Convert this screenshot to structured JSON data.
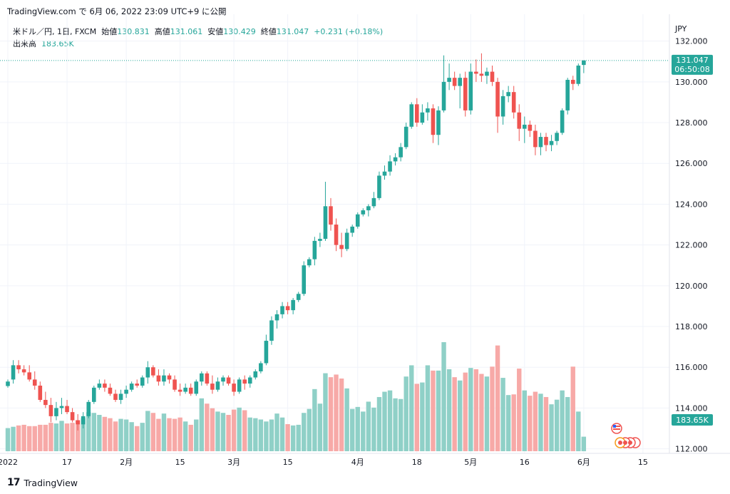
{
  "caption": "TradingView.com で 6月 06, 2022 23:09 UTC+9 に公開",
  "symbol": {
    "name": "米ドル／円, 1日, FXCM",
    "open_label": "始値",
    "open": "130.831",
    "high_label": "高値",
    "high": "131.061",
    "low_label": "安値",
    "low": "130.429",
    "close_label": "終値",
    "close": "131.047",
    "change": "+0.231 (+0.18%)"
  },
  "volume_info": {
    "label": "出来高",
    "value": "183.65K"
  },
  "currency": "JPY",
  "price_tag": {
    "price": "131.047",
    "countdown": "06:50:08"
  },
  "volume_tag": "183.65K",
  "brand": "TradingView",
  "colors": {
    "up": "#26a69a",
    "down": "#ef5350",
    "up_vol": "#8fd0c7",
    "down_vol": "#f7a9a7",
    "grid": "#f0f3fa"
  },
  "chart_data": {
    "type": "candlestick",
    "title": "米ドル／円, 1日, FXCM",
    "ylabel": "JPY",
    "ylim": [
      111.2,
      132.6
    ],
    "yticks": [
      "112.000",
      "114.000",
      "116.000",
      "118.000",
      "120.000",
      "122.000",
      "124.000",
      "126.000",
      "128.000",
      "130.000",
      "132.000"
    ],
    "x_ticks": [
      {
        "label": "2022",
        "index": 0
      },
      {
        "label": "17",
        "index": 11
      },
      {
        "label": "2月",
        "index": 22
      },
      {
        "label": "15",
        "index": 32
      },
      {
        "label": "3月",
        "index": 42
      },
      {
        "label": "15",
        "index": 52
      },
      {
        "label": "4月",
        "index": 65
      },
      {
        "label": "18",
        "index": 76
      },
      {
        "label": "5月",
        "index": 86
      },
      {
        "label": "16",
        "index": 96
      },
      {
        "label": "6月",
        "index": 107
      },
      {
        "label": "15",
        "index": 118
      }
    ],
    "candles": [
      {
        "o": 115.08,
        "h": 115.4,
        "l": 115.0,
        "c": 115.3,
        "v": 35
      },
      {
        "o": 115.4,
        "h": 116.35,
        "l": 115.2,
        "c": 116.1,
        "v": 37
      },
      {
        "o": 116.1,
        "h": 116.35,
        "l": 115.7,
        "c": 115.9,
        "v": 39
      },
      {
        "o": 115.9,
        "h": 116.1,
        "l": 115.6,
        "c": 115.75,
        "v": 40
      },
      {
        "o": 115.75,
        "h": 116.1,
        "l": 115.3,
        "c": 115.4,
        "v": 38
      },
      {
        "o": 115.4,
        "h": 115.8,
        "l": 114.9,
        "c": 115.1,
        "v": 38
      },
      {
        "o": 115.1,
        "h": 115.3,
        "l": 114.3,
        "c": 114.4,
        "v": 40
      },
      {
        "o": 114.4,
        "h": 114.8,
        "l": 114.0,
        "c": 114.15,
        "v": 40
      },
      {
        "o": 114.15,
        "h": 114.5,
        "l": 113.3,
        "c": 113.6,
        "v": 43
      },
      {
        "o": 113.6,
        "h": 114.3,
        "l": 113.4,
        "c": 114.0,
        "v": 42
      },
      {
        "o": 114.0,
        "h": 114.5,
        "l": 113.7,
        "c": 114.1,
        "v": 46
      },
      {
        "o": 114.1,
        "h": 114.4,
        "l": 113.7,
        "c": 113.8,
        "v": 42
      },
      {
        "o": 113.8,
        "h": 114.0,
        "l": 113.3,
        "c": 113.4,
        "v": 43
      },
      {
        "o": 113.4,
        "h": 113.7,
        "l": 112.9,
        "c": 113.2,
        "v": 47
      },
      {
        "o": 113.2,
        "h": 113.8,
        "l": 113.0,
        "c": 113.6,
        "v": 50
      },
      {
        "o": 113.6,
        "h": 114.4,
        "l": 113.5,
        "c": 114.3,
        "v": 59
      },
      {
        "o": 114.3,
        "h": 115.1,
        "l": 114.2,
        "c": 115.0,
        "v": 58
      },
      {
        "o": 115.0,
        "h": 115.4,
        "l": 114.9,
        "c": 115.2,
        "v": 55
      },
      {
        "o": 115.2,
        "h": 115.4,
        "l": 114.8,
        "c": 115.0,
        "v": 52
      },
      {
        "o": 115.0,
        "h": 115.2,
        "l": 114.6,
        "c": 114.7,
        "v": 50
      },
      {
        "o": 114.7,
        "h": 114.9,
        "l": 114.3,
        "c": 114.4,
        "v": 45
      },
      {
        "o": 114.4,
        "h": 114.9,
        "l": 114.2,
        "c": 114.7,
        "v": 49
      },
      {
        "o": 114.7,
        "h": 115.1,
        "l": 114.5,
        "c": 114.9,
        "v": 48
      },
      {
        "o": 114.9,
        "h": 115.3,
        "l": 114.8,
        "c": 115.2,
        "v": 44
      },
      {
        "o": 115.2,
        "h": 115.4,
        "l": 115.0,
        "c": 115.1,
        "v": 38
      },
      {
        "o": 115.1,
        "h": 115.6,
        "l": 115.0,
        "c": 115.5,
        "v": 43
      },
      {
        "o": 115.5,
        "h": 116.3,
        "l": 115.2,
        "c": 116.0,
        "v": 61
      },
      {
        "o": 116.0,
        "h": 116.1,
        "l": 115.5,
        "c": 115.6,
        "v": 58
      },
      {
        "o": 115.6,
        "h": 115.9,
        "l": 115.1,
        "c": 115.3,
        "v": 49
      },
      {
        "o": 115.3,
        "h": 115.9,
        "l": 115.1,
        "c": 115.6,
        "v": 57
      },
      {
        "o": 115.6,
        "h": 115.7,
        "l": 115.2,
        "c": 115.4,
        "v": 50
      },
      {
        "o": 115.4,
        "h": 115.6,
        "l": 114.8,
        "c": 114.9,
        "v": 49
      },
      {
        "o": 114.9,
        "h": 115.2,
        "l": 114.6,
        "c": 114.8,
        "v": 51
      },
      {
        "o": 114.8,
        "h": 115.2,
        "l": 114.7,
        "c": 115.0,
        "v": 45
      },
      {
        "o": 115.0,
        "h": 115.2,
        "l": 114.6,
        "c": 114.7,
        "v": 40
      },
      {
        "o": 114.7,
        "h": 115.4,
        "l": 114.6,
        "c": 115.3,
        "v": 48
      },
      {
        "o": 115.3,
        "h": 115.8,
        "l": 115.1,
        "c": 115.7,
        "v": 80
      },
      {
        "o": 115.7,
        "h": 115.8,
        "l": 115.1,
        "c": 115.2,
        "v": 72
      },
      {
        "o": 115.2,
        "h": 115.6,
        "l": 114.7,
        "c": 114.9,
        "v": 65
      },
      {
        "o": 114.9,
        "h": 115.5,
        "l": 114.8,
        "c": 115.3,
        "v": 60
      },
      {
        "o": 115.3,
        "h": 115.6,
        "l": 115.1,
        "c": 115.5,
        "v": 58
      },
      {
        "o": 115.5,
        "h": 115.6,
        "l": 115.1,
        "c": 115.2,
        "v": 55
      },
      {
        "o": 115.2,
        "h": 115.4,
        "l": 114.6,
        "c": 114.8,
        "v": 63
      },
      {
        "o": 114.8,
        "h": 115.5,
        "l": 114.7,
        "c": 115.4,
        "v": 66
      },
      {
        "o": 115.4,
        "h": 115.6,
        "l": 114.9,
        "c": 115.2,
        "v": 62
      },
      {
        "o": 115.2,
        "h": 115.6,
        "l": 115.0,
        "c": 115.5,
        "v": 51
      },
      {
        "o": 115.5,
        "h": 115.9,
        "l": 115.4,
        "c": 115.8,
        "v": 50
      },
      {
        "o": 115.8,
        "h": 116.3,
        "l": 115.7,
        "c": 116.2,
        "v": 48
      },
      {
        "o": 116.2,
        "h": 117.6,
        "l": 116.1,
        "c": 117.3,
        "v": 45
      },
      {
        "o": 117.3,
        "h": 118.5,
        "l": 117.1,
        "c": 118.3,
        "v": 48
      },
      {
        "o": 118.3,
        "h": 118.8,
        "l": 117.9,
        "c": 118.6,
        "v": 57
      },
      {
        "o": 118.6,
        "h": 119.2,
        "l": 118.4,
        "c": 119.0,
        "v": 51
      },
      {
        "o": 119.0,
        "h": 119.2,
        "l": 118.6,
        "c": 118.8,
        "v": 41
      },
      {
        "o": 118.8,
        "h": 119.4,
        "l": 118.6,
        "c": 119.3,
        "v": 39
      },
      {
        "o": 119.3,
        "h": 119.7,
        "l": 119.2,
        "c": 119.6,
        "v": 40
      },
      {
        "o": 119.6,
        "h": 121.2,
        "l": 119.5,
        "c": 121.0,
        "v": 58
      },
      {
        "o": 121.0,
        "h": 121.4,
        "l": 120.9,
        "c": 121.3,
        "v": 64
      },
      {
        "o": 121.3,
        "h": 122.4,
        "l": 121.0,
        "c": 122.2,
        "v": 94
      },
      {
        "o": 122.2,
        "h": 122.6,
        "l": 121.9,
        "c": 122.3,
        "v": 72
      },
      {
        "o": 122.3,
        "h": 125.1,
        "l": 122.2,
        "c": 123.9,
        "v": 118
      },
      {
        "o": 123.9,
        "h": 124.3,
        "l": 122.7,
        "c": 123.0,
        "v": 112
      },
      {
        "o": 123.0,
        "h": 123.3,
        "l": 121.7,
        "c": 122.0,
        "v": 116
      },
      {
        "o": 122.0,
        "h": 122.6,
        "l": 121.4,
        "c": 121.8,
        "v": 110
      },
      {
        "o": 121.8,
        "h": 122.8,
        "l": 121.7,
        "c": 122.6,
        "v": 95
      },
      {
        "o": 122.6,
        "h": 123.0,
        "l": 122.4,
        "c": 122.9,
        "v": 64
      },
      {
        "o": 122.9,
        "h": 123.6,
        "l": 122.8,
        "c": 123.5,
        "v": 67
      },
      {
        "o": 123.5,
        "h": 123.8,
        "l": 123.4,
        "c": 123.7,
        "v": 60
      },
      {
        "o": 123.7,
        "h": 124.0,
        "l": 123.4,
        "c": 123.9,
        "v": 75
      },
      {
        "o": 123.9,
        "h": 124.6,
        "l": 123.8,
        "c": 124.3,
        "v": 66
      },
      {
        "o": 124.3,
        "h": 125.6,
        "l": 124.2,
        "c": 125.4,
        "v": 82
      },
      {
        "o": 125.4,
        "h": 125.9,
        "l": 125.2,
        "c": 125.6,
        "v": 90
      },
      {
        "o": 125.6,
        "h": 126.4,
        "l": 125.4,
        "c": 126.1,
        "v": 92
      },
      {
        "o": 126.1,
        "h": 126.5,
        "l": 125.9,
        "c": 126.3,
        "v": 80
      },
      {
        "o": 126.3,
        "h": 127.0,
        "l": 126.1,
        "c": 126.8,
        "v": 79
      },
      {
        "o": 126.8,
        "h": 128.0,
        "l": 126.7,
        "c": 127.8,
        "v": 113
      },
      {
        "o": 127.8,
        "h": 129.0,
        "l": 127.7,
        "c": 128.9,
        "v": 130
      },
      {
        "o": 128.9,
        "h": 129.2,
        "l": 127.8,
        "c": 128.0,
        "v": 102
      },
      {
        "o": 128.0,
        "h": 128.9,
        "l": 127.9,
        "c": 128.5,
        "v": 104
      },
      {
        "o": 128.5,
        "h": 129.0,
        "l": 128.1,
        "c": 128.7,
        "v": 130
      },
      {
        "o": 128.7,
        "h": 128.9,
        "l": 127.0,
        "c": 127.4,
        "v": 122
      },
      {
        "o": 127.4,
        "h": 128.8,
        "l": 126.9,
        "c": 128.6,
        "v": 122
      },
      {
        "o": 128.6,
        "h": 131.3,
        "l": 128.5,
        "c": 130.0,
        "v": 165
      },
      {
        "o": 130.0,
        "h": 130.9,
        "l": 129.6,
        "c": 130.2,
        "v": 124
      },
      {
        "o": 130.2,
        "h": 130.5,
        "l": 129.6,
        "c": 129.8,
        "v": 112
      },
      {
        "o": 129.8,
        "h": 130.4,
        "l": 128.7,
        "c": 130.2,
        "v": 107
      },
      {
        "o": 130.2,
        "h": 130.5,
        "l": 128.3,
        "c": 128.6,
        "v": 119
      },
      {
        "o": 128.6,
        "h": 130.9,
        "l": 128.4,
        "c": 130.5,
        "v": 126
      },
      {
        "o": 130.5,
        "h": 131.1,
        "l": 130.0,
        "c": 130.4,
        "v": 124
      },
      {
        "o": 130.4,
        "h": 131.4,
        "l": 130.0,
        "c": 130.3,
        "v": 117
      },
      {
        "o": 130.3,
        "h": 130.7,
        "l": 129.9,
        "c": 130.5,
        "v": 113
      },
      {
        "o": 130.5,
        "h": 130.8,
        "l": 129.8,
        "c": 130.0,
        "v": 128
      },
      {
        "o": 130.0,
        "h": 130.2,
        "l": 127.5,
        "c": 128.3,
        "v": 160
      },
      {
        "o": 128.3,
        "h": 129.6,
        "l": 127.9,
        "c": 129.3,
        "v": 111
      },
      {
        "o": 129.3,
        "h": 129.8,
        "l": 129.0,
        "c": 129.5,
        "v": 85
      },
      {
        "o": 129.5,
        "h": 129.8,
        "l": 128.2,
        "c": 128.5,
        "v": 86
      },
      {
        "o": 128.5,
        "h": 128.9,
        "l": 127.1,
        "c": 127.7,
        "v": 125
      },
      {
        "o": 127.7,
        "h": 128.3,
        "l": 127.0,
        "c": 127.9,
        "v": 92
      },
      {
        "o": 127.9,
        "h": 128.1,
        "l": 127.3,
        "c": 127.6,
        "v": 84
      },
      {
        "o": 127.6,
        "h": 127.9,
        "l": 126.4,
        "c": 126.8,
        "v": 90
      },
      {
        "o": 126.8,
        "h": 127.5,
        "l": 126.4,
        "c": 127.3,
        "v": 87
      },
      {
        "o": 127.3,
        "h": 127.5,
        "l": 126.6,
        "c": 126.9,
        "v": 82
      },
      {
        "o": 126.9,
        "h": 127.4,
        "l": 126.6,
        "c": 127.1,
        "v": 71
      },
      {
        "o": 127.1,
        "h": 127.6,
        "l": 126.9,
        "c": 127.5,
        "v": 78
      },
      {
        "o": 127.5,
        "h": 128.7,
        "l": 127.4,
        "c": 128.6,
        "v": 92
      },
      {
        "o": 128.6,
        "h": 130.2,
        "l": 128.4,
        "c": 130.1,
        "v": 82
      },
      {
        "o": 130.1,
        "h": 130.3,
        "l": 129.6,
        "c": 129.9,
        "v": 128
      },
      {
        "o": 129.9,
        "h": 130.9,
        "l": 129.8,
        "c": 130.8,
        "v": 60
      },
      {
        "o": 130.83,
        "h": 131.06,
        "l": 130.43,
        "c": 131.05,
        "v": 22
      }
    ]
  }
}
